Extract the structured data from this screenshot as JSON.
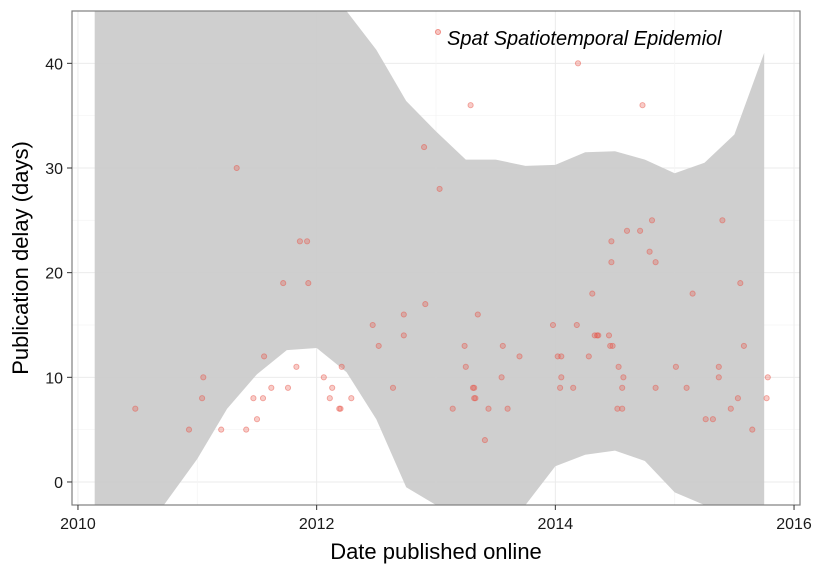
{
  "chart_data": {
    "type": "scatter",
    "xlabel": "Date published online",
    "ylabel": "Publication delay (days)",
    "xlim": [
      2009.95,
      2016.05
    ],
    "ylim": [
      -2.2,
      45.0
    ],
    "x_ticks": [
      2010,
      2012,
      2014,
      2016
    ],
    "y_ticks": [
      0,
      10,
      20,
      30,
      40
    ],
    "grid": true,
    "legend_position": "top-right",
    "colors": {
      "points": "#e8564a",
      "ribbon": "#cccccc",
      "panel_border": "#7f7f7f",
      "grid_major": "#ebebeb",
      "grid_minor": "#f5f5f5"
    },
    "series": [
      {
        "name": "Spat Spatiotemporal Epidemiol",
        "points": [
          [
            2010.48,
            7
          ],
          [
            2010.93,
            5
          ],
          [
            2011.05,
            10
          ],
          [
            2011.04,
            8
          ],
          [
            2011.2,
            5
          ],
          [
            2011.33,
            30
          ],
          [
            2011.41,
            5
          ],
          [
            2011.47,
            8
          ],
          [
            2011.5,
            6
          ],
          [
            2011.55,
            8
          ],
          [
            2011.56,
            12
          ],
          [
            2011.62,
            9
          ],
          [
            2011.72,
            19
          ],
          [
            2011.76,
            9
          ],
          [
            2011.83,
            11
          ],
          [
            2011.86,
            23
          ],
          [
            2011.92,
            23
          ],
          [
            2011.93,
            19
          ],
          [
            2012.06,
            10
          ],
          [
            2012.11,
            8
          ],
          [
            2012.13,
            9
          ],
          [
            2012.19,
            7
          ],
          [
            2012.2,
            7
          ],
          [
            2012.21,
            11
          ],
          [
            2012.29,
            8
          ],
          [
            2012.47,
            15
          ],
          [
            2012.52,
            13
          ],
          [
            2012.64,
            9
          ],
          [
            2012.73,
            16
          ],
          [
            2012.73,
            14
          ],
          [
            2012.9,
            32
          ],
          [
            2012.91,
            17
          ],
          [
            2013.03,
            28
          ],
          [
            2013.14,
            7
          ],
          [
            2013.24,
            13
          ],
          [
            2013.25,
            11
          ],
          [
            2013.29,
            36
          ],
          [
            2013.31,
            9
          ],
          [
            2013.32,
            9
          ],
          [
            2013.32,
            8
          ],
          [
            2013.33,
            8
          ],
          [
            2013.35,
            16
          ],
          [
            2013.41,
            4
          ],
          [
            2013.44,
            7
          ],
          [
            2013.55,
            10
          ],
          [
            2013.56,
            13
          ],
          [
            2013.6,
            7
          ],
          [
            2013.7,
            12
          ],
          [
            2013.98,
            15
          ],
          [
            2014.02,
            12
          ],
          [
            2014.04,
            9
          ],
          [
            2014.05,
            10
          ],
          [
            2014.05,
            12
          ],
          [
            2014.15,
            9
          ],
          [
            2014.19,
            40
          ],
          [
            2014.18,
            15
          ],
          [
            2014.28,
            12
          ],
          [
            2014.31,
            18
          ],
          [
            2014.33,
            14
          ],
          [
            2014.35,
            14
          ],
          [
            2014.36,
            14
          ],
          [
            2014.45,
            14
          ],
          [
            2014.46,
            13
          ],
          [
            2014.47,
            21
          ],
          [
            2014.47,
            23
          ],
          [
            2014.48,
            13
          ],
          [
            2014.52,
            7
          ],
          [
            2014.53,
            11
          ],
          [
            2014.56,
            9
          ],
          [
            2014.57,
            10
          ],
          [
            2014.56,
            7
          ],
          [
            2014.6,
            24
          ],
          [
            2014.71,
            24
          ],
          [
            2014.73,
            36
          ],
          [
            2014.79,
            22
          ],
          [
            2014.81,
            25
          ],
          [
            2014.84,
            21
          ],
          [
            2014.84,
            9
          ],
          [
            2015.01,
            11
          ],
          [
            2015.1,
            9
          ],
          [
            2015.15,
            18
          ],
          [
            2015.26,
            6
          ],
          [
            2015.32,
            6
          ],
          [
            2015.37,
            10
          ],
          [
            2015.37,
            11
          ],
          [
            2015.4,
            25
          ],
          [
            2015.47,
            7
          ],
          [
            2015.53,
            8
          ],
          [
            2015.55,
            19
          ],
          [
            2015.58,
            13
          ],
          [
            2015.65,
            5
          ],
          [
            2015.77,
            8
          ],
          [
            2015.78,
            10
          ]
        ]
      }
    ],
    "ribbon": {
      "x": [
        2010.14,
        2010.5,
        2010.72,
        2011.0,
        2011.25,
        2011.5,
        2011.75,
        2012.0,
        2012.25,
        2012.5,
        2012.75,
        2013.0,
        2013.25,
        2013.5,
        2013.75,
        2014.0,
        2014.25,
        2014.5,
        2014.75,
        2015.0,
        2015.25,
        2015.5,
        2015.75
      ],
      "lower": [
        -2.2,
        -2.2,
        -2.2,
        2.2,
        7.0,
        10.3,
        12.6,
        12.8,
        10.5,
        6.0,
        -0.5,
        -2.2,
        -2.2,
        -2.2,
        -2.2,
        1.5,
        2.6,
        3.0,
        2.0,
        -1.0,
        -2.2,
        -2.2,
        -2.2
      ],
      "upper": [
        45.0,
        45.0,
        45.0,
        45.0,
        45.0,
        45.0,
        45.0,
        45.0,
        45.0,
        41.3,
        36.4,
        33.5,
        30.8,
        30.8,
        30.2,
        30.3,
        31.5,
        31.6,
        30.8,
        29.5,
        30.5,
        33.2,
        41.0
      ]
    }
  }
}
